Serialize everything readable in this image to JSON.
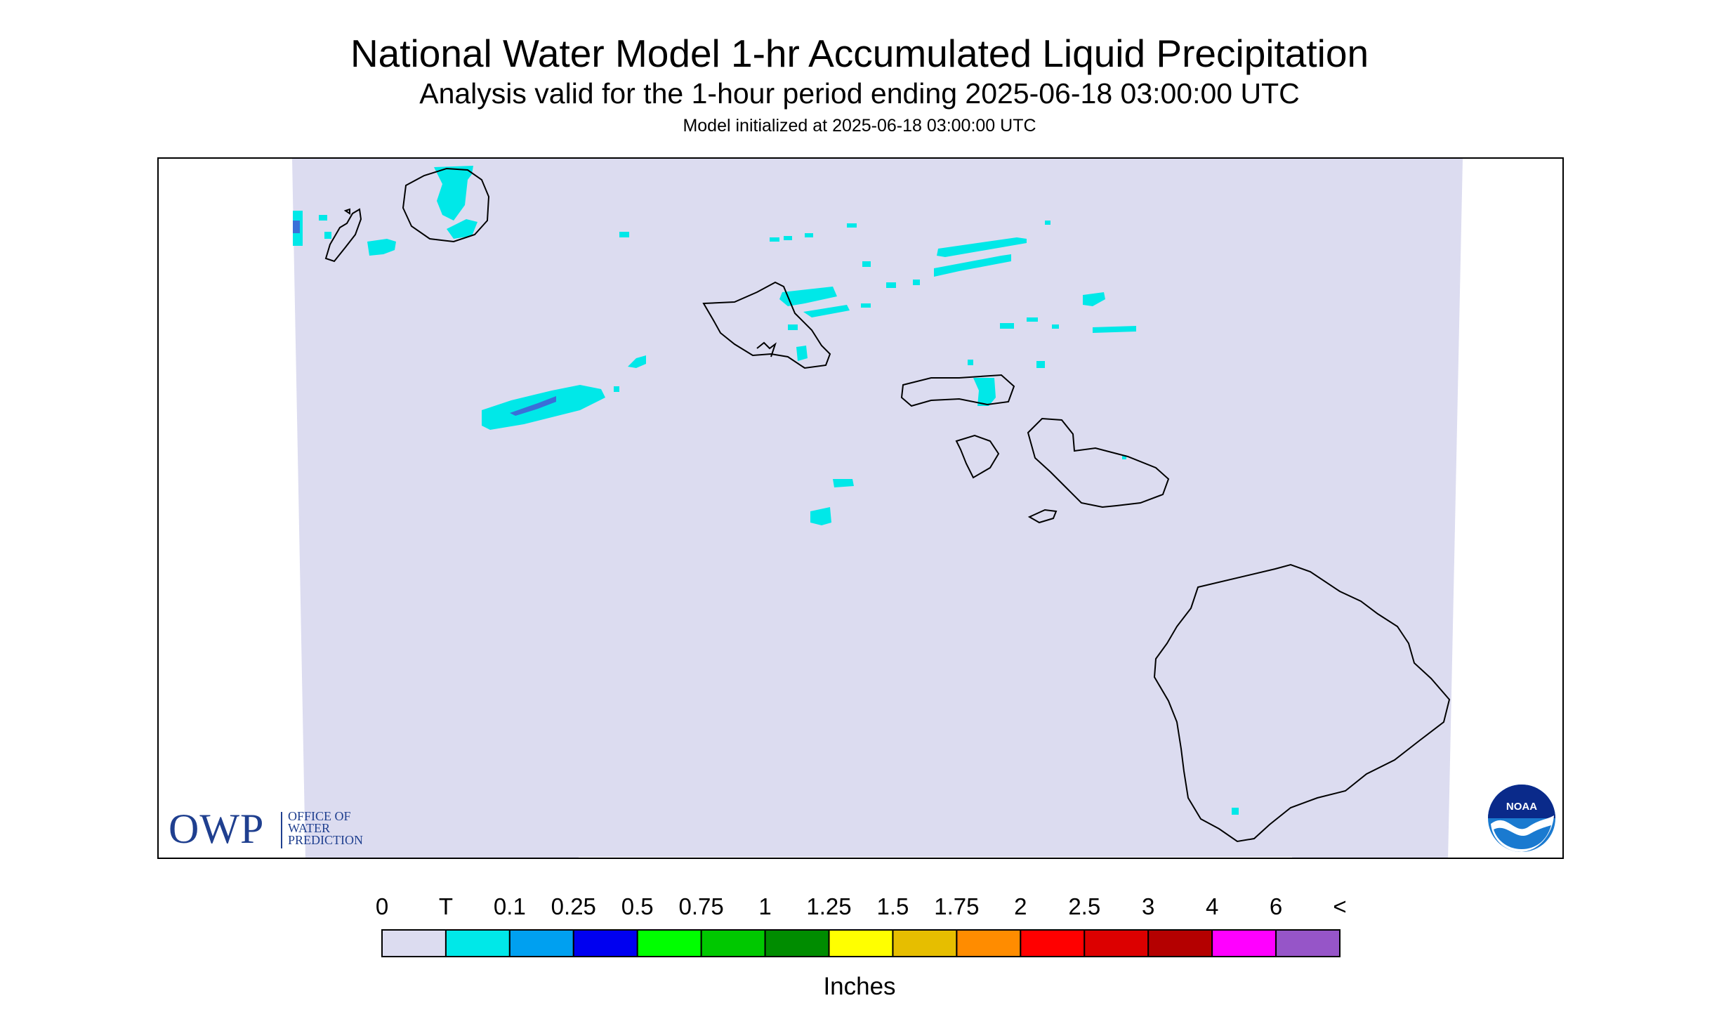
{
  "header": {
    "title": "National Water Model 1-hr Accumulated Liquid Precipitation",
    "subtitle": "Analysis valid for the 1-hour period ending 2025-06-18 03:00:00 UTC",
    "init": "Model initialized at 2025-06-18 03:00:00 UTC"
  },
  "owp": {
    "letters": "OWP",
    "line1": "OFFICE OF",
    "line2": "WATER",
    "line3": "PREDICTION"
  },
  "noaa": {
    "label": "NOAA"
  },
  "legend": {
    "ticks": [
      "0",
      "T",
      "0.1",
      "0.25",
      "0.5",
      "0.75",
      "1",
      "1.25",
      "1.5",
      "1.75",
      "2",
      "2.5",
      "3",
      "4",
      "6",
      "<"
    ],
    "colors": [
      "#dcdcf0",
      "#00e8e8",
      "#00a0f0",
      "#0000f0",
      "#00ff00",
      "#00c800",
      "#008c00",
      "#ffff00",
      "#e6be00",
      "#ff8c00",
      "#ff0000",
      "#dc0000",
      "#b40000",
      "#ff00ff",
      "#9655c8"
    ],
    "units": "Inches"
  },
  "map": {
    "domain_color": "#dcdcf0",
    "coast_color": "#000000",
    "precip_colors": {
      "trace": "#00e8e8",
      "light": "#00a0f0",
      "moderate": "#3a6fd8"
    }
  }
}
